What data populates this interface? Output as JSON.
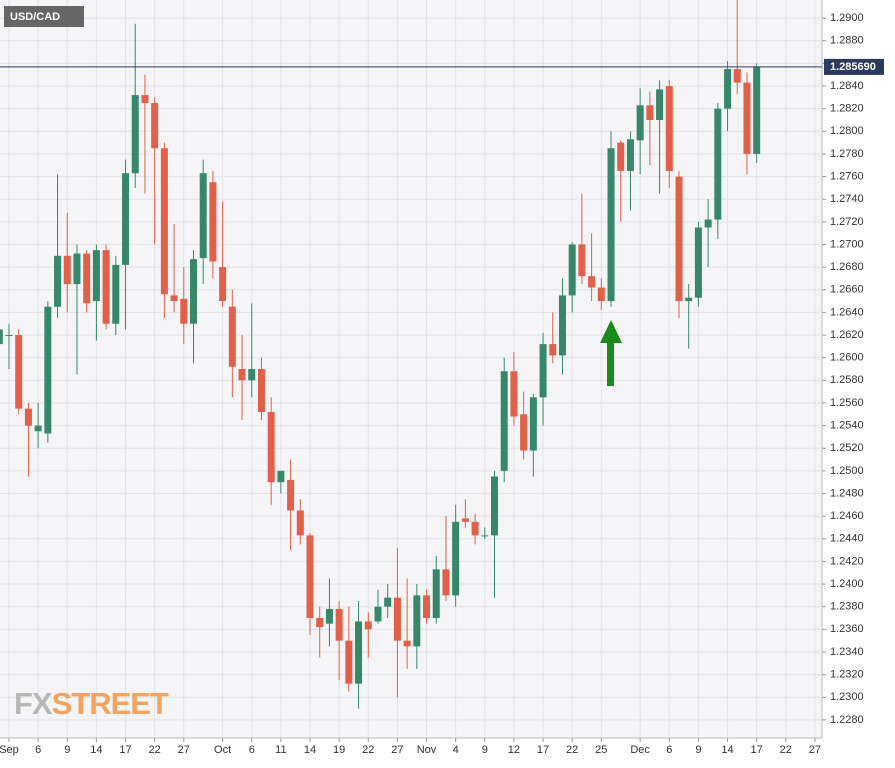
{
  "chart_data": {
    "type": "candlestick",
    "title": "USD/CAD",
    "watermark": [
      "FX",
      "STREET"
    ],
    "up_color": "#37876b",
    "down_color": "#e0604a",
    "grid": true,
    "categories": [
      null,
      "Sep",
      null,
      null,
      "6",
      null,
      null,
      "9",
      null,
      null,
      "14",
      null,
      null,
      "17",
      null,
      null,
      "22",
      null,
      null,
      "27",
      null,
      null,
      null,
      "Oct",
      null,
      null,
      "6",
      null,
      null,
      "11",
      null,
      null,
      "14",
      null,
      null,
      "19",
      null,
      null,
      "22",
      null,
      null,
      "27",
      null,
      null,
      "Nov",
      null,
      null,
      "4",
      null,
      null,
      "9",
      null,
      null,
      "12",
      null,
      null,
      "17",
      null,
      null,
      "22",
      null,
      null,
      "25",
      null,
      null,
      null,
      "Dec",
      null,
      null,
      "6",
      null,
      null,
      "9",
      null,
      null,
      "14",
      null,
      null,
      "17",
      null,
      null,
      "22",
      null,
      null,
      "27"
    ],
    "open": [
      1.2612,
      1.262,
      1.262,
      1.2555,
      1.2535,
      1.2533,
      1.2645,
      1.269,
      1.2665,
      1.2692,
      1.265,
      1.2695,
      1.263,
      1.2682,
      1.2763,
      1.2832,
      1.2825,
      1.2785,
      1.2655,
      1.2652,
      1.263,
      1.2688,
      1.2755,
      1.268,
      1.2645,
      1.259,
      1.258,
      1.259,
      1.2552,
      1.249,
      1.2492,
      1.2465,
      1.2443,
      1.237,
      1.2365,
      1.2378,
      1.235,
      1.2312,
      1.2367,
      1.2367,
      1.238,
      1.2388,
      1.235,
      1.2345,
      1.239,
      1.237,
      1.2413,
      1.239,
      1.2458,
      1.2455,
      1.2443,
      1.2443,
      1.25,
      1.2588,
      1.255,
      1.2518,
      1.2565,
      1.2612,
      1.2602,
      1.2655,
      1.27,
      1.2672,
      1.2662,
      1.265,
      1.279,
      1.2765,
      1.2792,
      1.2823,
      1.281,
      1.284,
      1.276,
      1.265,
      1.2653,
      1.2715,
      1.2722,
      1.282,
      1.2855,
      1.2843,
      1.278,
      null,
      null,
      null,
      null,
      null,
      null
    ],
    "high": [
      1.266,
      1.263,
      1.2625,
      1.256,
      1.256,
      1.265,
      1.2762,
      1.2728,
      1.27,
      1.2695,
      1.27,
      1.27,
      1.269,
      1.2775,
      1.2895,
      1.285,
      1.283,
      1.279,
      1.2718,
      1.268,
      1.2695,
      1.2775,
      1.2765,
      1.2738,
      1.266,
      1.262,
      1.2648,
      1.26,
      1.2565,
      1.25,
      1.251,
      1.2475,
      1.2445,
      1.238,
      1.2405,
      1.2385,
      1.238,
      1.2385,
      1.2375,
      1.2395,
      1.24,
      1.2432,
      1.2405,
      1.24,
      1.2395,
      1.2425,
      1.246,
      1.247,
      1.2475,
      1.2462,
      1.245,
      1.25,
      1.26,
      1.2605,
      1.257,
      1.2568,
      1.2622,
      1.264,
      1.267,
      1.2702,
      1.2745,
      1.271,
      1.267,
      1.28,
      1.2792,
      1.28,
      1.2838,
      1.2835,
      1.2845,
      1.2845,
      1.2765,
      1.2665,
      1.272,
      1.274,
      1.2825,
      1.2862,
      1.2918,
      1.2852,
      1.286,
      null,
      null,
      null,
      null,
      null,
      null
    ],
    "low": [
      1.2575,
      1.259,
      1.255,
      1.2495,
      1.252,
      1.2525,
      1.2635,
      1.264,
      1.2585,
      1.264,
      1.2615,
      1.2625,
      1.262,
      1.2625,
      1.275,
      1.2745,
      1.27,
      1.2635,
      1.264,
      1.2612,
      1.2595,
      1.2665,
      1.267,
      1.2645,
      1.2565,
      1.2545,
      1.2565,
      1.2545,
      1.247,
      1.248,
      1.243,
      1.2435,
      1.2355,
      1.2335,
      1.2345,
      1.2315,
      1.2305,
      1.229,
      1.2335,
      1.2365,
      1.237,
      1.23,
      1.2325,
      1.2325,
      1.2365,
      1.2365,
      1.2385,
      1.238,
      1.245,
      1.2435,
      1.244,
      1.2388,
      1.249,
      1.254,
      1.251,
      1.2495,
      1.254,
      1.2595,
      1.2585,
      1.264,
      1.2665,
      1.265,
      1.2642,
      1.2645,
      1.272,
      1.273,
      1.2762,
      1.277,
      1.2745,
      1.275,
      1.2635,
      1.2608,
      1.2645,
      1.268,
      1.2705,
      1.28,
      1.2833,
      1.2762,
      1.2772,
      null,
      null,
      null,
      null,
      null,
      null
    ],
    "close": [
      1.2625,
      1.262,
      1.2555,
      1.254,
      1.254,
      1.2645,
      1.269,
      1.2665,
      1.2692,
      1.2648,
      1.2695,
      1.263,
      1.2682,
      1.2763,
      1.2832,
      1.2825,
      1.2785,
      1.2656,
      1.265,
      1.263,
      1.2687,
      1.2763,
      1.2685,
      1.265,
      1.2592,
      1.258,
      1.259,
      1.2552,
      1.249,
      1.25,
      1.2465,
      1.2443,
      1.237,
      1.2362,
      1.2378,
      1.235,
      1.2312,
      1.2367,
      1.236,
      1.238,
      1.2388,
      1.235,
      1.2345,
      1.239,
      1.237,
      1.2413,
      1.239,
      1.2455,
      1.2455,
      1.2443,
      1.2443,
      1.2495,
      1.2588,
      1.2548,
      1.2518,
      1.2565,
      1.2612,
      1.2602,
      1.2655,
      1.27,
      1.2672,
      1.2662,
      1.265,
      1.2785,
      1.2765,
      1.2793,
      1.2823,
      1.281,
      1.2837,
      1.2765,
      1.265,
      1.2653,
      1.2715,
      1.2722,
      1.282,
      1.2855,
      1.2843,
      1.278,
      1.2857,
      null,
      null,
      null,
      null,
      null,
      null
    ],
    "ylim": [
      1.2264,
      1.2916
    ],
    "yticks": [
      {
        "value": 1.228,
        "label": "1.2280"
      },
      {
        "value": 1.23,
        "label": "1.2300"
      },
      {
        "value": 1.232,
        "label": "1.2320"
      },
      {
        "value": 1.234,
        "label": "1.2340"
      },
      {
        "value": 1.236,
        "label": "1.2360"
      },
      {
        "value": 1.238,
        "label": "1.2380"
      },
      {
        "value": 1.24,
        "label": "1.2400"
      },
      {
        "value": 1.242,
        "label": "1.2420"
      },
      {
        "value": 1.244,
        "label": "1.2440"
      },
      {
        "value": 1.246,
        "label": "1.2460"
      },
      {
        "value": 1.248,
        "label": "1.2480"
      },
      {
        "value": 1.25,
        "label": "1.2500"
      },
      {
        "value": 1.252,
        "label": "1.2520"
      },
      {
        "value": 1.254,
        "label": "1.2540"
      },
      {
        "value": 1.256,
        "label": "1.2560"
      },
      {
        "value": 1.258,
        "label": "1.2580"
      },
      {
        "value": 1.26,
        "label": "1.2600"
      },
      {
        "value": 1.262,
        "label": "1.2620"
      },
      {
        "value": 1.264,
        "label": "1.2640"
      },
      {
        "value": 1.266,
        "label": "1.2660"
      },
      {
        "value": 1.268,
        "label": "1.2680"
      },
      {
        "value": 1.27,
        "label": "1.2700"
      },
      {
        "value": 1.272,
        "label": "1.2720"
      },
      {
        "value": 1.274,
        "label": "1.2740"
      },
      {
        "value": 1.276,
        "label": "1.2760"
      },
      {
        "value": 1.278,
        "label": "1.2780"
      },
      {
        "value": 1.28,
        "label": "1.2800"
      },
      {
        "value": 1.282,
        "label": "1.2820"
      },
      {
        "value": 1.284,
        "label": "1.2840"
      },
      {
        "value": 1.286,
        "label": "1.2860"
      },
      {
        "value": 1.288,
        "label": "1.2880"
      },
      {
        "value": 1.29,
        "label": "1.2900"
      }
    ],
    "last_price": {
      "value": 1.28569,
      "label": "1.285690"
    }
  }
}
